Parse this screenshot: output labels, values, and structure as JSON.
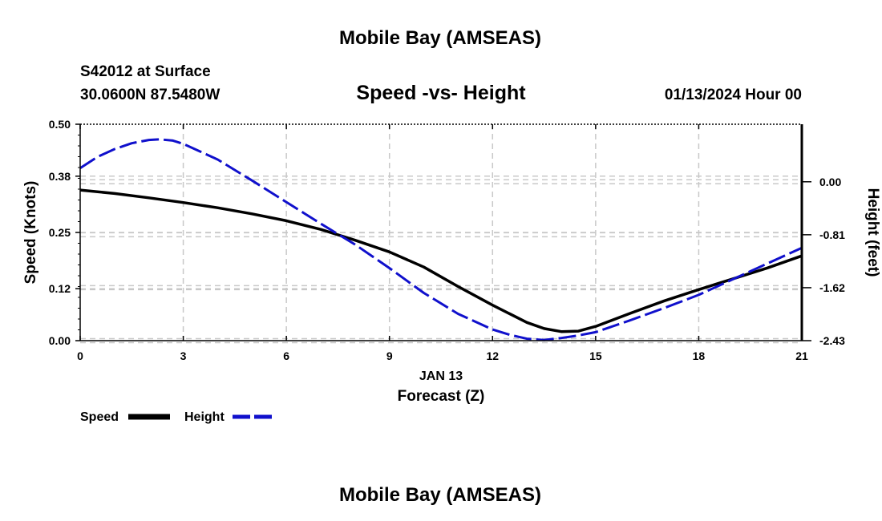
{
  "page": {
    "title": "Mobile Bay (AMSEAS)",
    "footer_title": "Mobile Bay (AMSEAS)"
  },
  "header": {
    "station": "S42012 at Surface",
    "coords": "30.0600N  87.5480W",
    "chart_title": "Speed -vs- Height",
    "datetime": "01/13/2024 Hour 00"
  },
  "colors": {
    "speed": "#000000",
    "height": "#1010cc",
    "grid": "#c8c8c8"
  },
  "chart_data": {
    "type": "line",
    "title": "Speed -vs- Height",
    "xlabel": "Forecast (Z)",
    "xlabel_date": "JAN 13",
    "xlim": [
      0,
      21
    ],
    "x_ticks": [
      "0",
      "3",
      "6",
      "9",
      "12",
      "15",
      "18",
      "21"
    ],
    "ylabel_left": "Speed (Knots)",
    "ylim_left": [
      0,
      0.5
    ],
    "y_ticks_left": [
      "0.00",
      "0.12",
      "0.25",
      "0.38",
      "0.50"
    ],
    "ylabel_right": "Height (feet)",
    "ylim_right": [
      -2.43,
      0.88
    ],
    "y_ticks_right": [
      "0.00",
      "-0.81",
      "-1.62",
      "-2.43"
    ],
    "grid": true,
    "legend": "bottom-left",
    "series": [
      {
        "name": "Speed",
        "axis": "left",
        "style": "solid",
        "x": [
          0,
          1,
          2,
          3,
          4,
          5,
          6,
          7,
          8,
          9,
          10,
          11,
          12,
          13,
          13.5,
          14,
          14.5,
          15,
          16,
          17,
          18,
          19,
          20,
          21
        ],
        "values": [
          0.348,
          0.34,
          0.33,
          0.319,
          0.307,
          0.293,
          0.277,
          0.257,
          0.232,
          0.205,
          0.17,
          0.125,
          0.082,
          0.042,
          0.028,
          0.021,
          0.022,
          0.033,
          0.063,
          0.092,
          0.118,
          0.143,
          0.168,
          0.196
        ]
      },
      {
        "name": "Height",
        "axis": "right",
        "style": "dashed",
        "x": [
          0,
          0.5,
          1,
          1.5,
          2,
          2.3,
          2.7,
          3,
          4,
          5,
          6,
          7,
          8,
          9,
          10,
          11,
          12,
          12.5,
          13,
          13.5,
          14,
          14.5,
          15,
          16,
          17,
          18,
          19,
          20,
          21
        ],
        "values": [
          0.21,
          0.38,
          0.5,
          0.59,
          0.64,
          0.65,
          0.63,
          0.58,
          0.34,
          0.02,
          -0.31,
          -0.64,
          -0.96,
          -1.32,
          -1.7,
          -2.02,
          -2.26,
          -2.34,
          -2.4,
          -2.42,
          -2.39,
          -2.35,
          -2.3,
          -2.12,
          -1.93,
          -1.73,
          -1.49,
          -1.25,
          -1.01
        ]
      }
    ]
  }
}
